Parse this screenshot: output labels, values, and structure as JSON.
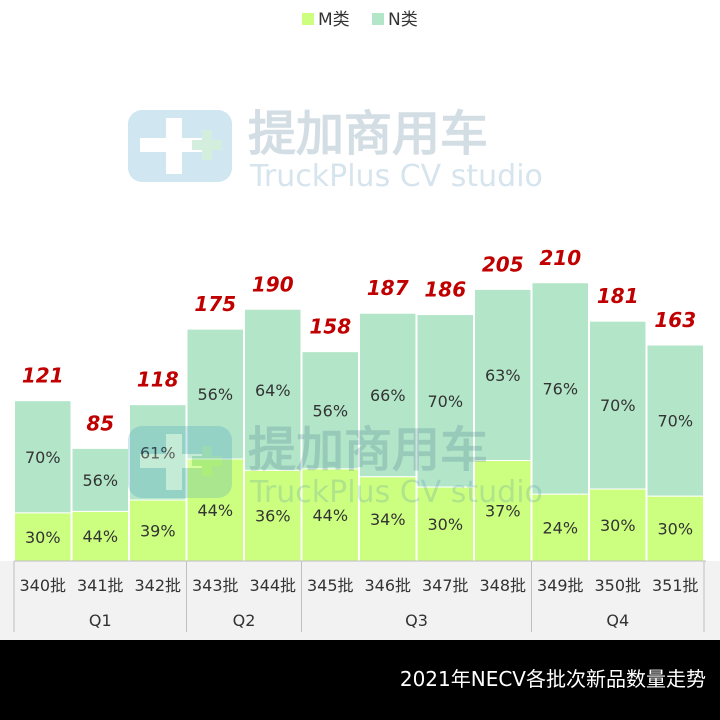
{
  "chart_data": {
    "type": "bar",
    "stacked": true,
    "categories": [
      "340批",
      "341批",
      "342批",
      "343批",
      "344批",
      "345批",
      "346批",
      "347批",
      "348批",
      "349批",
      "350批",
      "351批"
    ],
    "totals": [
      121,
      85,
      118,
      175,
      190,
      158,
      187,
      186,
      205,
      210,
      181,
      163
    ],
    "series": [
      {
        "name": "M类",
        "color": "#ccff80",
        "percent": [
          30,
          44,
          39,
          44,
          36,
          44,
          34,
          30,
          37,
          24,
          30,
          30
        ]
      },
      {
        "name": "N类",
        "color": "#b3e6c9",
        "percent": [
          70,
          56,
          61,
          56,
          64,
          56,
          66,
          70,
          63,
          76,
          70,
          70
        ]
      }
    ],
    "groups": [
      {
        "label": "Q1",
        "start": 0,
        "end": 2
      },
      {
        "label": "Q2",
        "start": 3,
        "end": 4
      },
      {
        "label": "Q3",
        "start": 5,
        "end": 8
      },
      {
        "label": "Q4",
        "start": 9,
        "end": 11
      }
    ],
    "legend_position": "top",
    "title": "2021年NECV各批次新品数量走势",
    "total_label_color": "#c00000"
  },
  "watermark": {
    "brand_cn": "提加商用车",
    "brand_en": "TruckPlus CV studio"
  },
  "footer": {
    "title": "2021年NECV各批次新品数量走势"
  }
}
